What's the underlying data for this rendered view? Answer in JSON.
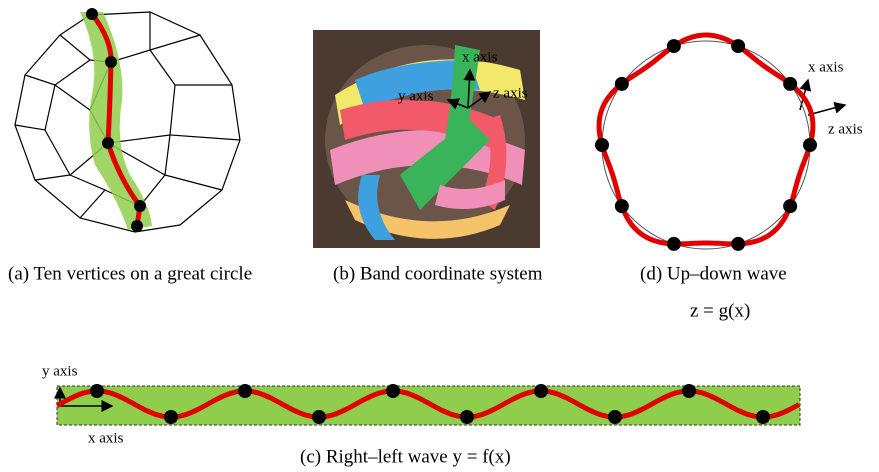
{
  "panels": [
    {
      "caption": "(a)  Ten vertices on a great circle"
    },
    {
      "caption": "(b) Band coordinate system",
      "axis_labels": [
        "x axis",
        "y axis",
        "z axis"
      ]
    },
    {
      "caption": "(d) Up–down wave",
      "formula": "z = g(x)",
      "axis_labels": [
        "x axis",
        "z axis"
      ]
    },
    {
      "caption": "(c) Right–left wave  y = f(x)",
      "axis_labels": [
        "y axis",
        "x axis"
      ]
    }
  ]
}
